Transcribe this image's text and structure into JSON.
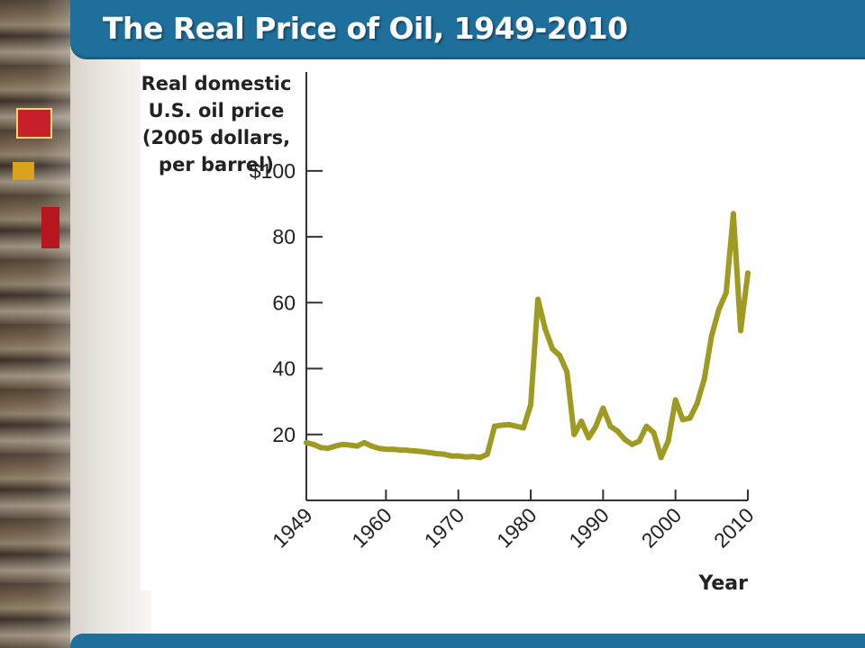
{
  "title": "The Real Price of Oil, 1949-2010",
  "colors": {
    "title_bar": "#1f6f9c",
    "title_text": "#ffffff",
    "series_line": "#9e9a22",
    "axis": "#333333"
  },
  "chart_data": {
    "type": "line",
    "title": "",
    "ylabel_lines": [
      "Real domestic",
      "U.S. oil price",
      "(2005 dollars,",
      "per barrel)"
    ],
    "xlabel": "Year",
    "xlim": [
      1949,
      2010
    ],
    "ylim": [
      0,
      130
    ],
    "x_ticks": [
      1949,
      1960,
      1970,
      1980,
      1990,
      2000,
      2010
    ],
    "x_tick_labels": [
      "1949",
      "1960",
      "1970",
      "1980",
      "1990",
      "2000",
      "2010"
    ],
    "y_ticks": [
      20,
      40,
      60,
      80,
      100
    ],
    "y_tick_labels": [
      "20",
      "40",
      "60",
      "80",
      "$100"
    ],
    "grid": false,
    "series": [
      {
        "name": "",
        "x": [
          1949,
          1950,
          1951,
          1952,
          1953,
          1954,
          1955,
          1956,
          1957,
          1958,
          1959,
          1960,
          1961,
          1962,
          1963,
          1964,
          1965,
          1966,
          1967,
          1968,
          1969,
          1970,
          1971,
          1972,
          1973,
          1974,
          1975,
          1976,
          1977,
          1978,
          1979,
          1980,
          1981,
          1982,
          1983,
          1984,
          1985,
          1986,
          1987,
          1988,
          1989,
          1990,
          1991,
          1992,
          1993,
          1994,
          1995,
          1996,
          1997,
          1998,
          1999,
          2000,
          2001,
          2002,
          2003,
          2004,
          2005,
          2006,
          2007,
          2008,
          2009,
          2010
        ],
        "y": [
          17.5,
          17,
          16,
          15.8,
          16.5,
          17,
          16.8,
          16.5,
          17.5,
          16.5,
          15.8,
          15.5,
          15.5,
          15.3,
          15.2,
          15,
          14.8,
          14.5,
          14.2,
          14,
          13.5,
          13.5,
          13.2,
          13.3,
          13,
          14,
          22.5,
          22.8,
          23,
          22.5,
          22,
          29,
          61,
          52,
          46,
          44,
          39,
          20,
          24,
          19,
          22.5,
          28,
          22.5,
          21,
          18.5,
          17,
          18,
          22.5,
          20.5,
          13,
          18,
          30.5,
          24.5,
          25,
          29.5,
          37,
          50,
          58,
          63,
          87,
          51.5,
          69
        ]
      }
    ]
  }
}
